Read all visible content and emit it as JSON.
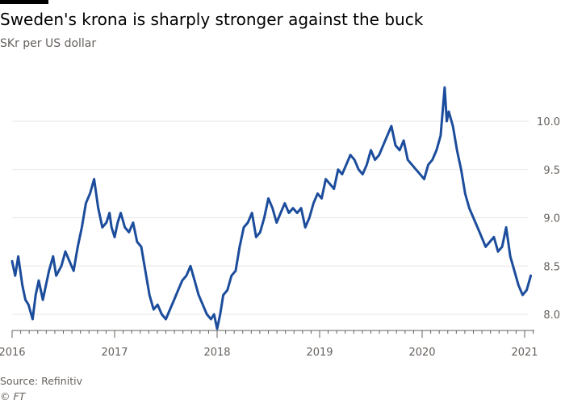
{
  "title": "Sweden's krona is sharply stronger against the buck",
  "subtitle": "SKr per US dollar",
  "source": "Source: Refinitiv",
  "copyright": "© FT",
  "colors": {
    "line": "#1c4d9c",
    "grid": "#e9e6e3",
    "text": "#66605c"
  },
  "chart_data": {
    "type": "line",
    "title": "Sweden's krona is sharply stronger against the buck",
    "subtitle": "SKr per US dollar",
    "xlabel": "",
    "ylabel": "SKr per US dollar",
    "xlim": [
      2016.0,
      2021.1
    ],
    "ylim": [
      7.8,
      10.4
    ],
    "y_ticks": [
      8.0,
      8.5,
      9.0,
      9.5,
      10.0
    ],
    "y_tick_labels": [
      "8.0",
      "8.5",
      "9.0",
      "9.5",
      "10.0"
    ],
    "x_ticks": [
      2016,
      2017,
      2018,
      2019,
      2020,
      2021
    ],
    "x_tick_labels": [
      "2016",
      "2017",
      "2018",
      "2019",
      "2020",
      "2021"
    ],
    "grid": true,
    "series": [
      {
        "name": "SKr per US dollar",
        "x": [
          2016.0,
          2016.03,
          2016.06,
          2016.1,
          2016.13,
          2016.16,
          2016.2,
          2016.23,
          2016.26,
          2016.3,
          2016.33,
          2016.36,
          2016.4,
          2016.43,
          2016.48,
          2016.52,
          2016.56,
          2016.6,
          2016.64,
          2016.68,
          2016.72,
          2016.76,
          2016.8,
          2016.84,
          2016.88,
          2016.92,
          2016.95,
          2016.97,
          2017.0,
          2017.03,
          2017.06,
          2017.1,
          2017.14,
          2017.18,
          2017.22,
          2017.26,
          2017.3,
          2017.34,
          2017.38,
          2017.42,
          2017.46,
          2017.5,
          2017.54,
          2017.58,
          2017.62,
          2017.66,
          2017.7,
          2017.74,
          2017.78,
          2017.82,
          2017.86,
          2017.9,
          2017.94,
          2017.97,
          2018.0,
          2018.03,
          2018.06,
          2018.1,
          2018.14,
          2018.18,
          2018.22,
          2018.26,
          2018.3,
          2018.34,
          2018.38,
          2018.42,
          2018.46,
          2018.5,
          2018.54,
          2018.58,
          2018.62,
          2018.66,
          2018.7,
          2018.74,
          2018.78,
          2018.82,
          2018.86,
          2018.9,
          2018.94,
          2018.98,
          2019.02,
          2019.06,
          2019.1,
          2019.14,
          2019.18,
          2019.22,
          2019.26,
          2019.3,
          2019.34,
          2019.38,
          2019.42,
          2019.46,
          2019.5,
          2019.54,
          2019.58,
          2019.62,
          2019.66,
          2019.7,
          2019.74,
          2019.78,
          2019.82,
          2019.86,
          2019.9,
          2019.94,
          2019.98,
          2020.02,
          2020.06,
          2020.1,
          2020.14,
          2020.18,
          2020.2,
          2020.22,
          2020.24,
          2020.26,
          2020.3,
          2020.34,
          2020.38,
          2020.42,
          2020.46,
          2020.5,
          2020.54,
          2020.58,
          2020.62,
          2020.66,
          2020.7,
          2020.74,
          2020.78,
          2020.82,
          2020.86,
          2020.9,
          2020.94,
          2020.98,
          2021.02,
          2021.06
        ],
        "values": [
          8.55,
          8.4,
          8.6,
          8.3,
          8.15,
          8.1,
          7.95,
          8.2,
          8.35,
          8.15,
          8.3,
          8.45,
          8.6,
          8.4,
          8.5,
          8.65,
          8.55,
          8.45,
          8.7,
          8.9,
          9.15,
          9.25,
          9.4,
          9.1,
          8.9,
          8.95,
          9.05,
          8.9,
          8.8,
          8.95,
          9.05,
          8.9,
          8.85,
          8.95,
          8.75,
          8.7,
          8.45,
          8.2,
          8.05,
          8.1,
          8.0,
          7.95,
          8.05,
          8.15,
          8.25,
          8.35,
          8.4,
          8.5,
          8.35,
          8.2,
          8.1,
          8.0,
          7.95,
          8.0,
          7.85,
          8.0,
          8.2,
          8.25,
          8.4,
          8.45,
          8.7,
          8.9,
          8.95,
          9.05,
          8.8,
          8.85,
          9.0,
          9.2,
          9.1,
          8.95,
          9.05,
          9.15,
          9.05,
          9.1,
          9.05,
          9.1,
          8.9,
          9.0,
          9.15,
          9.25,
          9.2,
          9.4,
          9.35,
          9.3,
          9.5,
          9.45,
          9.55,
          9.65,
          9.6,
          9.5,
          9.45,
          9.55,
          9.7,
          9.6,
          9.65,
          9.75,
          9.85,
          9.95,
          9.75,
          9.7,
          9.8,
          9.6,
          9.55,
          9.5,
          9.45,
          9.4,
          9.55,
          9.6,
          9.7,
          9.85,
          10.1,
          10.35,
          10.0,
          10.1,
          9.95,
          9.7,
          9.5,
          9.25,
          9.1,
          9.0,
          8.9,
          8.8,
          8.7,
          8.75,
          8.8,
          8.65,
          8.7,
          8.9,
          8.6,
          8.45,
          8.3,
          8.2,
          8.25,
          8.4
        ]
      }
    ]
  }
}
